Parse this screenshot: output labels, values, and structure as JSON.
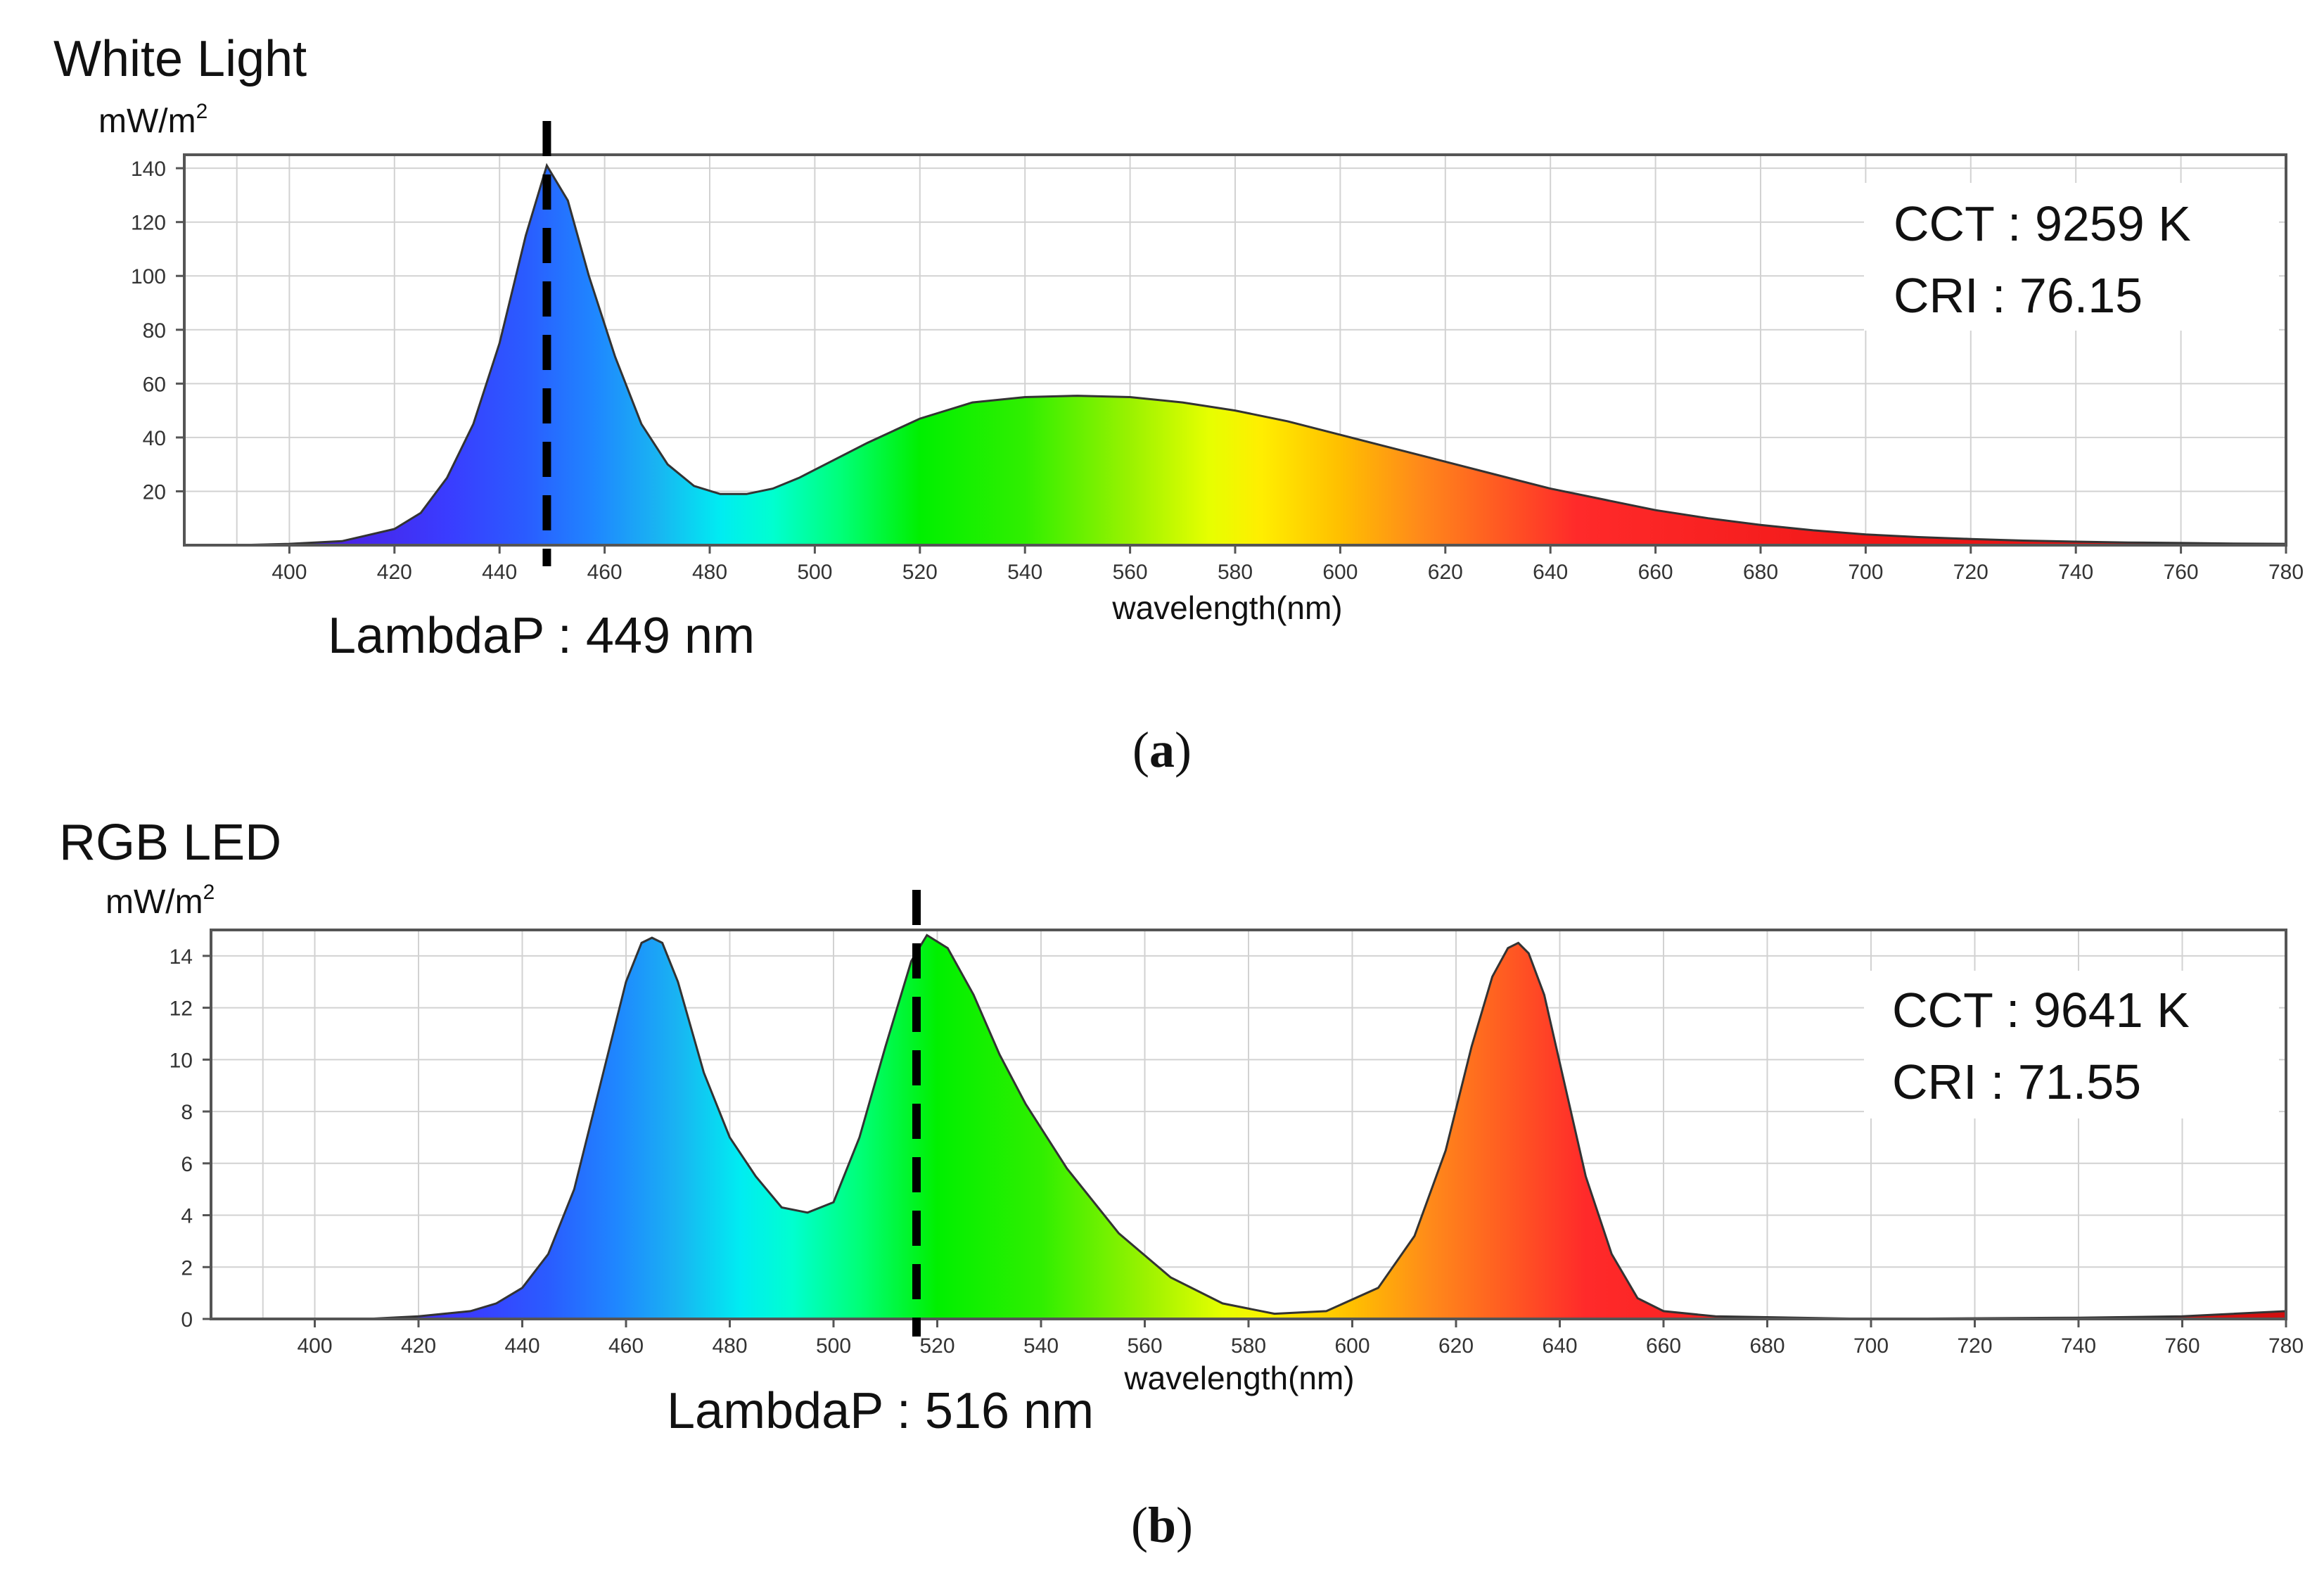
{
  "chart_data": [
    {
      "type": "area",
      "title": "White Light",
      "ylabel": "mW/m",
      "ylabel_superscript": "2",
      "xlabel": "wavelength(nm)",
      "xlim": [
        380,
        780
      ],
      "ylim": [
        0,
        145
      ],
      "yticks": [
        20,
        40,
        60,
        80,
        100,
        120,
        140
      ],
      "xticks": [
        400,
        420,
        440,
        460,
        480,
        500,
        520,
        540,
        560,
        580,
        600,
        620,
        640,
        660,
        680,
        700,
        720,
        740,
        760,
        780
      ],
      "fill": "visible-spectrum gradient",
      "series": [
        {
          "name": "White Light spectrum",
          "x": [
            380,
            390,
            400,
            410,
            420,
            425,
            430,
            435,
            440,
            445,
            449,
            453,
            457,
            462,
            467,
            472,
            477,
            482,
            487,
            492,
            497,
            502,
            510,
            520,
            530,
            540,
            550,
            560,
            570,
            580,
            590,
            600,
            610,
            620,
            630,
            640,
            650,
            660,
            670,
            680,
            690,
            700,
            710,
            720,
            730,
            740,
            750,
            760,
            770,
            780
          ],
          "y": [
            0,
            0,
            0.5,
            1.5,
            6,
            12,
            25,
            45,
            75,
            115,
            141,
            128,
            100,
            70,
            45,
            30,
            22,
            19,
            19,
            21,
            25,
            30,
            38,
            47,
            53,
            55,
            55.5,
            55,
            53,
            50,
            46,
            41,
            36,
            31,
            26,
            21,
            17,
            13,
            10,
            7.5,
            5.5,
            4,
            3,
            2.3,
            1.7,
            1.3,
            1,
            0.8,
            0.6,
            0.5
          ]
        }
      ],
      "marker_line": {
        "x": 449,
        "style": "dashed",
        "color": "#000000"
      },
      "annotations": {
        "lambda": "LambdaP : 449 nm",
        "cct": "CCT : 9259 K",
        "cri": "CRI : 76.15"
      },
      "caption": "a"
    },
    {
      "type": "area",
      "title": "RGB LED",
      "ylabel": "mW/m",
      "ylabel_superscript": "2",
      "xlabel": "wavelength(nm)",
      "xlim": [
        380,
        780
      ],
      "ylim": [
        0,
        15
      ],
      "yticks": [
        0,
        2,
        4,
        6,
        8,
        10,
        12,
        14
      ],
      "xticks": [
        400,
        420,
        440,
        460,
        480,
        500,
        520,
        540,
        560,
        580,
        600,
        620,
        640,
        660,
        680,
        700,
        720,
        740,
        760,
        780
      ],
      "fill": "visible-spectrum gradient",
      "series": [
        {
          "name": "RGB LED spectrum",
          "x": [
            380,
            410,
            420,
            430,
            435,
            440,
            445,
            450,
            455,
            460,
            463,
            465,
            467,
            470,
            475,
            480,
            485,
            490,
            495,
            500,
            505,
            510,
            515,
            518,
            522,
            527,
            532,
            537,
            545,
            555,
            565,
            575,
            585,
            595,
            605,
            612,
            618,
            623,
            627,
            630,
            632,
            634,
            637,
            641,
            645,
            650,
            655,
            660,
            670,
            700,
            740,
            760,
            780
          ],
          "y": [
            0,
            0,
            0.1,
            0.3,
            0.6,
            1.2,
            2.5,
            5,
            9,
            13,
            14.5,
            14.7,
            14.5,
            13,
            9.5,
            7,
            5.5,
            4.3,
            4.1,
            4.5,
            7,
            10.5,
            13.8,
            14.8,
            14.3,
            12.5,
            10.2,
            8.3,
            5.8,
            3.3,
            1.6,
            0.6,
            0.2,
            0.3,
            1.2,
            3.2,
            6.5,
            10.5,
            13.2,
            14.3,
            14.5,
            14.1,
            12.5,
            9,
            5.5,
            2.5,
            0.8,
            0.3,
            0.1,
            0,
            0.05,
            0.1,
            0.3
          ]
        }
      ],
      "marker_line": {
        "x": 516,
        "style": "dashed",
        "color": "#000000"
      },
      "annotations": {
        "lambda": "LambdaP : 516 nm",
        "cct": "CCT : 9641 K",
        "cri": "CRI : 71.55"
      },
      "caption": "b"
    }
  ]
}
